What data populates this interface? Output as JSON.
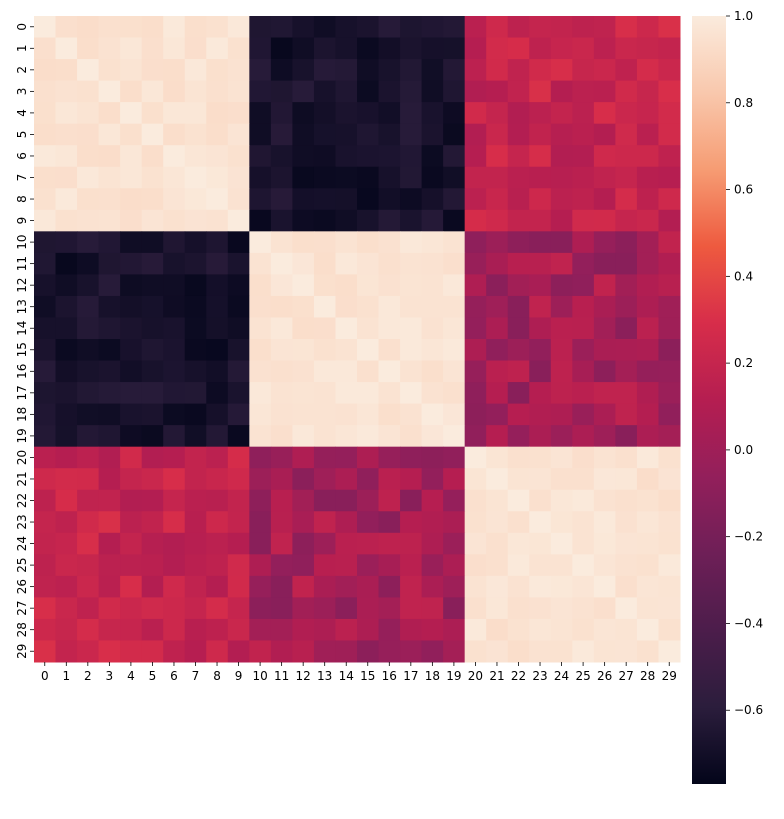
{
  "chart_data": {
    "type": "heatmap",
    "title": "",
    "xlabel": "",
    "ylabel": "",
    "x_categories": [
      "0",
      "1",
      "2",
      "3",
      "4",
      "5",
      "6",
      "7",
      "8",
      "9",
      "10",
      "11",
      "12",
      "13",
      "14",
      "15",
      "16",
      "17",
      "18",
      "19",
      "20",
      "21",
      "22",
      "23",
      "24",
      "25",
      "26",
      "27",
      "28",
      "29"
    ],
    "y_categories": [
      "0",
      "1",
      "2",
      "3",
      "4",
      "5",
      "6",
      "7",
      "8",
      "9",
      "10",
      "11",
      "12",
      "13",
      "14",
      "15",
      "16",
      "17",
      "18",
      "19",
      "20",
      "21",
      "22",
      "23",
      "24",
      "25",
      "26",
      "27",
      "28",
      "29"
    ],
    "colormap": "rocket",
    "vmin": -0.77,
    "vmax": 1.0,
    "colorbar_ticks": [
      "1.0",
      "0.8",
      "0.6",
      "0.4",
      "0.2",
      "0.0",
      "−0.2",
      "−0.4",
      "−0.6"
    ],
    "colorbar_tick_values": [
      1.0,
      0.8,
      0.6,
      0.4,
      0.2,
      0.0,
      -0.2,
      -0.4,
      -0.6
    ],
    "block_structure": {
      "groups": [
        [
          0,
          9
        ],
        [
          10,
          19
        ],
        [
          20,
          29
        ]
      ],
      "within_group": 0.96,
      "between_g1_g2": -0.68,
      "between_g1_g3": 0.2,
      "between_g2_g3": 0.03,
      "diagonal": 1.0
    },
    "notes": "Estimated correlation matrix (30x30); values read approximately from colour: within-block ≈ 0.9–1.0, block 1 vs block 2 ≈ −0.6 to −0.75, block 1 vs block 3 ≈ 0.1–0.35, block 2 vs block 3 ≈ −0.3 to 0.2."
  }
}
